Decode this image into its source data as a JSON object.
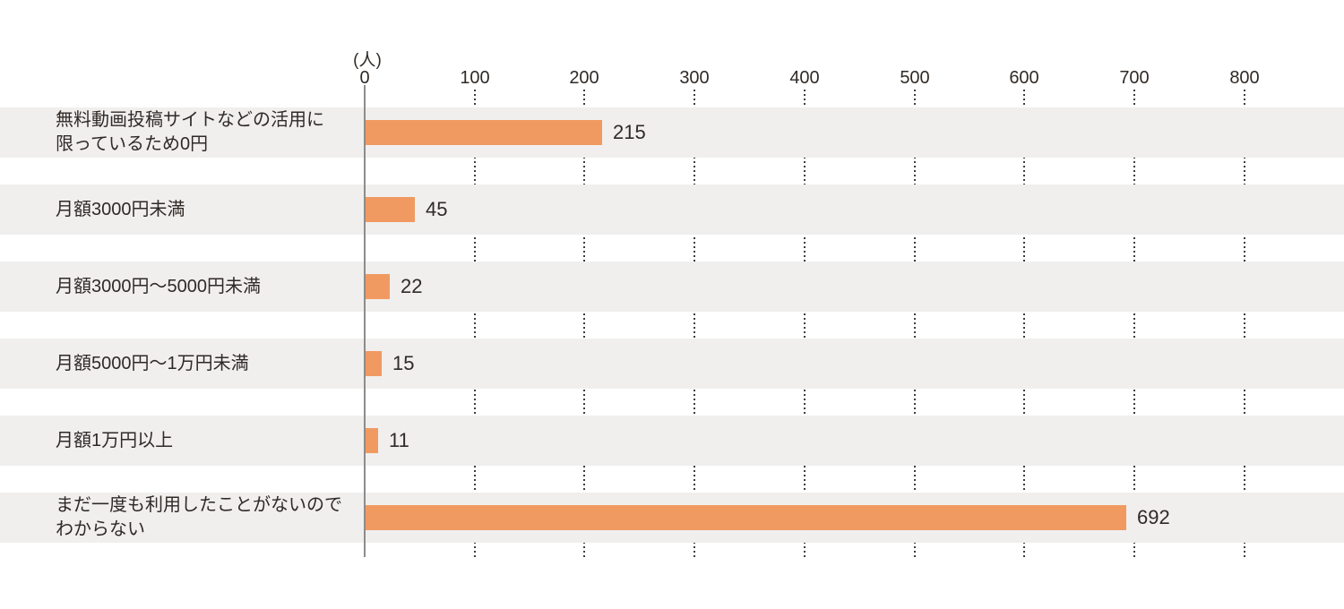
{
  "chart_data": {
    "type": "bar",
    "orientation": "horizontal",
    "unit_label": "(人)",
    "categories": [
      "無料動画投稿サイトなどの活用に限っているため0円",
      "月額3000円未満",
      "月額3000円〜5000円未満",
      "月額5000円〜1万円未満",
      "月額1万円以上",
      "まだ一度も利用したことがないのでわからない"
    ],
    "categories_display": [
      "無料動画投稿サイトなどの活用に\n限っているため0円",
      "月額3000円未満",
      "月額3000円〜5000円未満",
      "月額5000円〜1万円未満",
      "月額1万円以上",
      "まだ一度も利用したことがないので\nわからない"
    ],
    "values": [
      215,
      45,
      22,
      15,
      11,
      692
    ],
    "value_labels": [
      "215",
      "45",
      "22",
      "15",
      "11",
      "692"
    ],
    "ticks": [
      0,
      100,
      200,
      300,
      400,
      500,
      600,
      700,
      800
    ],
    "tick_labels": [
      "0",
      "100",
      "200",
      "300",
      "400",
      "500",
      "600",
      "700",
      "800"
    ],
    "xlim": [
      0,
      890
    ],
    "grid": "dotted vertical gridlines at intervals of 100, visible between row stripes",
    "legend": "none",
    "bar_color": "#F09A62",
    "stripe_color": "#F0EFEE",
    "axis_line_color": "#8C8C8C",
    "grid_dot_color": "#3D3D3D",
    "text_color": "#2F2A26"
  }
}
